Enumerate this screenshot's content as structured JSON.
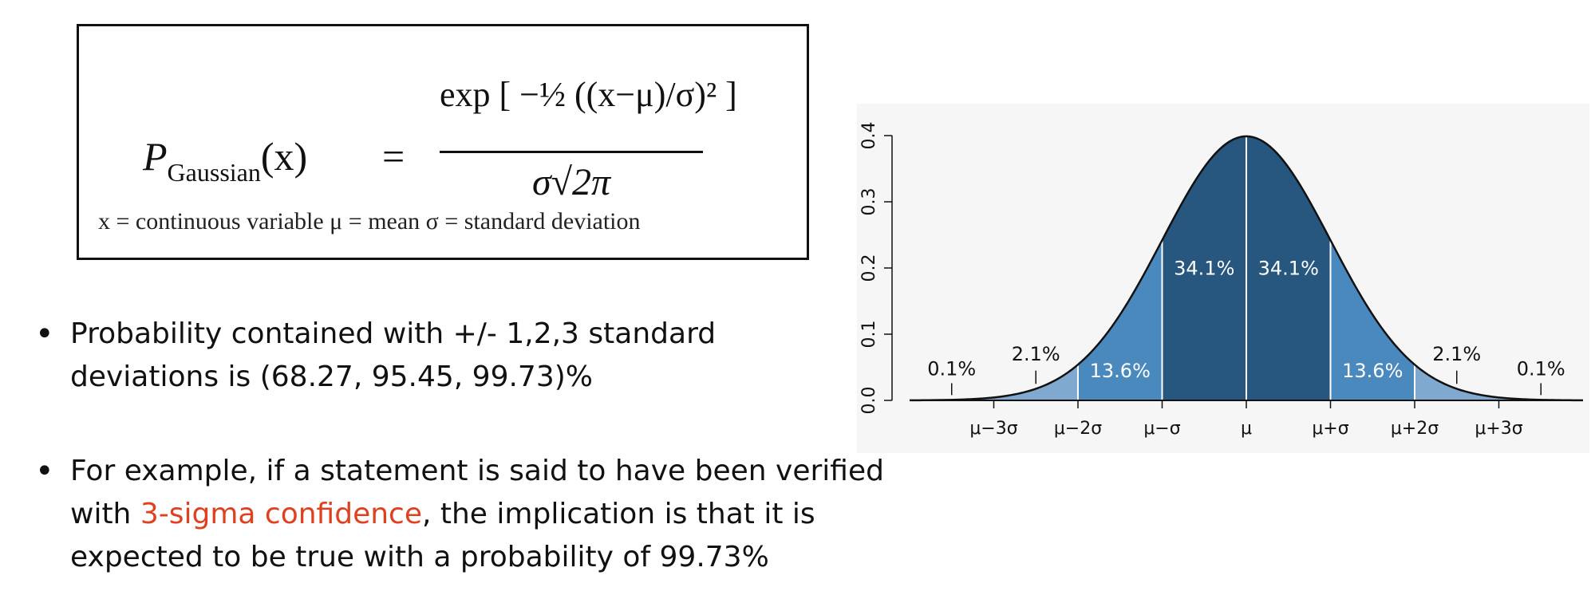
{
  "formula": {
    "lhs_symbol": "P",
    "lhs_subscript": "Gaussian",
    "lhs_arg": "(x)",
    "equals": "=",
    "numerator": "exp [ −½ ((x−μ)/σ)² ]",
    "denominator": "σ√2π",
    "legend": "x = continuous variable   μ = mean   σ = standard deviation"
  },
  "bullets": {
    "b1_dot": "•",
    "b1_text": "Probability contained with +/- 1,2,3  standard deviations is (68.27, 95.45, 99.73)%",
    "b2_dot": "•",
    "b2_pre": "For example, if a statement is said to have been verified with ",
    "b2_highlight": "3-sigma confidence",
    "b2_post": ", the implication is that it is expected to be true with a probability of 99.73%"
  },
  "colors": {
    "band_1sigma": "#27567f",
    "band_2sigma": "#4a89be",
    "band_3sigma": "#80a9cf",
    "curve": "#111111",
    "highlight_red": "#e0401e"
  },
  "chart_data": {
    "type": "area",
    "title": "",
    "xlabel": "",
    "ylabel": "",
    "ylim": [
      0,
      0.4
    ],
    "xlim": [
      -4,
      4
    ],
    "y_ticks": [
      "0.0",
      "0.1",
      "0.2",
      "0.3",
      "0.4"
    ],
    "y_tick_values": [
      0,
      0.1,
      0.2,
      0.3,
      0.4
    ],
    "x_ticks": [
      "μ−3σ",
      "μ−2σ",
      "μ−σ",
      "μ",
      "μ+σ",
      "μ+2σ",
      "μ+3σ"
    ],
    "x_tick_values": [
      -3,
      -2,
      -1,
      0,
      1,
      2,
      3
    ],
    "series": [
      {
        "x": [
          -4,
          -3.5,
          -3,
          -2.5,
          -2,
          -1.5,
          -1,
          -0.5,
          0,
          0.5,
          1,
          1.5,
          2,
          2.5,
          3,
          3.5,
          4
        ],
        "values": [
          0.0001,
          0.0009,
          0.0044,
          0.0175,
          0.054,
          0.1295,
          0.242,
          0.3521,
          0.3989,
          0.3521,
          0.242,
          0.1295,
          0.054,
          0.0175,
          0.0044,
          0.0009,
          0.0001
        ]
      }
    ],
    "bands": [
      {
        "from": -1,
        "to": 0,
        "label": "34.1%"
      },
      {
        "from": 0,
        "to": 1,
        "label": "34.1%"
      },
      {
        "from": -2,
        "to": -1,
        "label": "13.6%"
      },
      {
        "from": 1,
        "to": 2,
        "label": "13.6%"
      },
      {
        "from": -3,
        "to": -2,
        "label": "2.1%"
      },
      {
        "from": 2,
        "to": 3,
        "label": "2.1%"
      },
      {
        "from": -4,
        "to": -3,
        "label": "0.1%"
      },
      {
        "from": 3,
        "to": 4,
        "label": "0.1%"
      }
    ],
    "grid": false
  }
}
